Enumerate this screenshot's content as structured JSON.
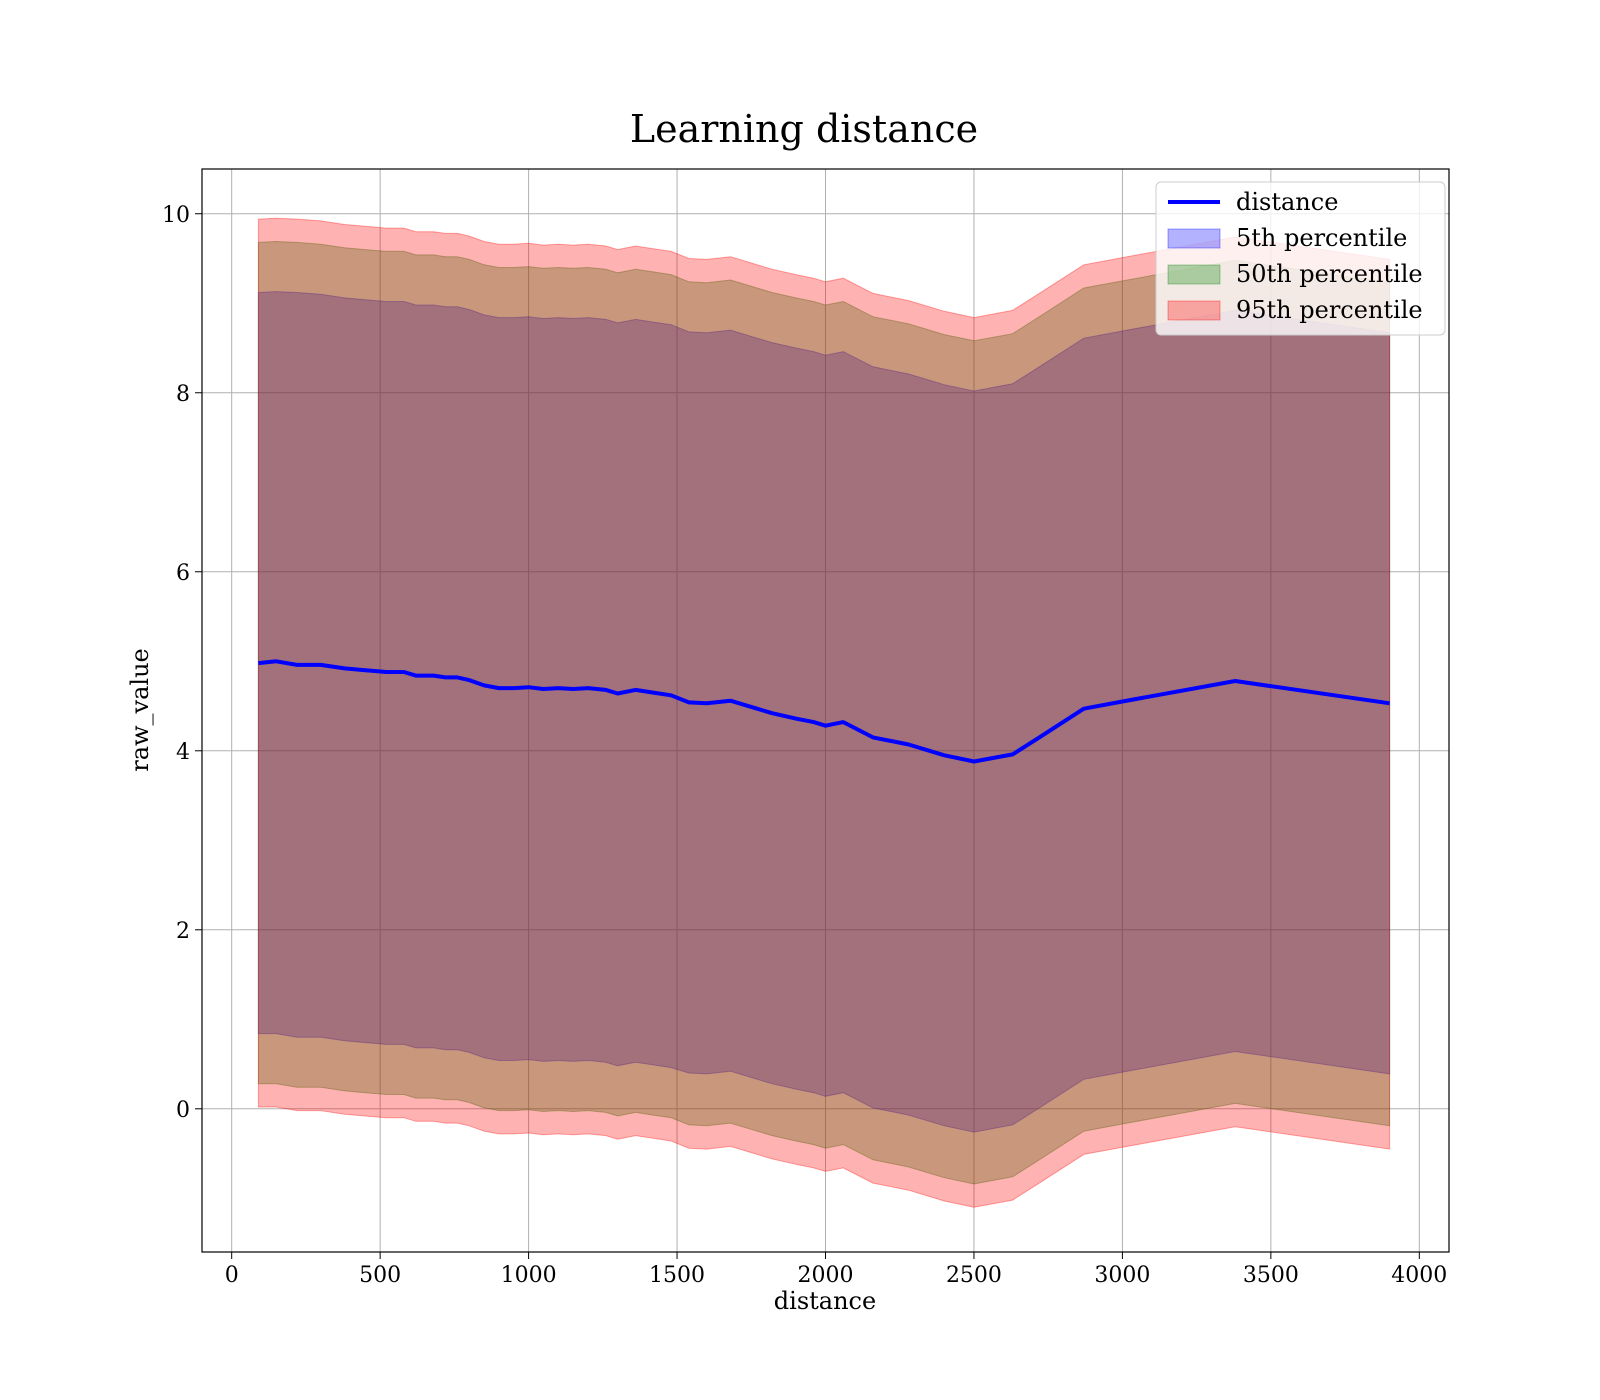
{
  "chart_data": {
    "type": "area",
    "title": "Learning distance",
    "xlabel": "distance",
    "ylabel": "raw_value",
    "xlim": [
      -100,
      4100
    ],
    "ylim": [
      -1.6,
      10.5
    ],
    "xticks": [
      0,
      500,
      1000,
      1500,
      2000,
      2500,
      3000,
      3500,
      4000
    ],
    "yticks": [
      0,
      2,
      4,
      6,
      8,
      10
    ],
    "grid": true,
    "legend_position": "top-right",
    "x": [
      90,
      150,
      220,
      300,
      380,
      450,
      520,
      580,
      620,
      680,
      720,
      760,
      800,
      850,
      900,
      950,
      1000,
      1050,
      1100,
      1150,
      1200,
      1260,
      1300,
      1360,
      1420,
      1480,
      1540,
      1600,
      1680,
      1760,
      1820,
      1900,
      1960,
      2000,
      2060,
      2160,
      2280,
      2400,
      2500,
      2630,
      2720,
      2870,
      3000,
      3380,
      3900
    ],
    "series": [
      {
        "name": "distance",
        "kind": "line",
        "color": "#0000ff",
        "values": [
          4.98,
          5.0,
          4.96,
          4.96,
          4.92,
          4.9,
          4.88,
          4.88,
          4.84,
          4.84,
          4.82,
          4.82,
          4.79,
          4.73,
          4.7,
          4.7,
          4.71,
          4.69,
          4.7,
          4.69,
          4.7,
          4.68,
          4.64,
          4.68,
          4.65,
          4.62,
          4.54,
          4.53,
          4.56,
          4.48,
          4.42,
          4.36,
          4.32,
          4.28,
          4.32,
          4.15,
          4.07,
          3.95,
          3.88,
          3.96,
          4.15,
          4.47,
          4.55,
          4.78,
          4.53
        ]
      },
      {
        "name": "5th percentile",
        "kind": "band",
        "color": "#0000ff",
        "lower": [
          0.84,
          0.84,
          0.8,
          0.8,
          0.76,
          0.74,
          0.72,
          0.72,
          0.68,
          0.68,
          0.66,
          0.66,
          0.63,
          0.57,
          0.54,
          0.54,
          0.55,
          0.53,
          0.54,
          0.53,
          0.54,
          0.52,
          0.48,
          0.52,
          0.49,
          0.46,
          0.4,
          0.39,
          0.42,
          0.34,
          0.28,
          0.22,
          0.18,
          0.14,
          0.18,
          0.01,
          -0.07,
          -0.19,
          -0.26,
          -0.18,
          0.01,
          0.33,
          0.41,
          0.64,
          0.39
        ],
        "upper": [
          9.12,
          9.13,
          9.12,
          9.1,
          9.06,
          9.04,
          9.02,
          9.02,
          8.98,
          8.98,
          8.96,
          8.96,
          8.93,
          8.87,
          8.84,
          8.84,
          8.85,
          8.83,
          8.84,
          8.83,
          8.84,
          8.82,
          8.78,
          8.82,
          8.79,
          8.76,
          8.68,
          8.67,
          8.7,
          8.62,
          8.56,
          8.5,
          8.46,
          8.42,
          8.46,
          8.29,
          8.21,
          8.09,
          8.02,
          8.1,
          8.29,
          8.61,
          8.69,
          8.92,
          8.67
        ]
      },
      {
        "name": "50th percentile",
        "kind": "band",
        "color": "#008000",
        "lower": [
          0.28,
          0.28,
          0.24,
          0.24,
          0.2,
          0.18,
          0.16,
          0.16,
          0.12,
          0.12,
          0.1,
          0.1,
          0.07,
          0.01,
          -0.02,
          -0.02,
          -0.01,
          -0.03,
          -0.02,
          -0.03,
          -0.02,
          -0.04,
          -0.08,
          -0.04,
          -0.07,
          -0.1,
          -0.18,
          -0.19,
          -0.16,
          -0.24,
          -0.3,
          -0.36,
          -0.4,
          -0.44,
          -0.4,
          -0.57,
          -0.65,
          -0.77,
          -0.84,
          -0.76,
          -0.57,
          -0.25,
          -0.17,
          0.06,
          -0.19
        ],
        "upper": [
          9.68,
          9.69,
          9.68,
          9.66,
          9.62,
          9.6,
          9.58,
          9.58,
          9.54,
          9.54,
          9.52,
          9.52,
          9.49,
          9.43,
          9.4,
          9.4,
          9.41,
          9.39,
          9.4,
          9.39,
          9.4,
          9.38,
          9.34,
          9.38,
          9.35,
          9.32,
          9.24,
          9.23,
          9.26,
          9.18,
          9.12,
          9.06,
          9.02,
          8.98,
          9.02,
          8.85,
          8.77,
          8.65,
          8.58,
          8.66,
          8.85,
          9.17,
          9.25,
          9.48,
          9.23
        ]
      },
      {
        "name": "95th percentile",
        "kind": "band",
        "color": "#ff0000",
        "lower": [
          0.02,
          0.02,
          -0.02,
          -0.02,
          -0.06,
          -0.08,
          -0.1,
          -0.1,
          -0.14,
          -0.14,
          -0.16,
          -0.16,
          -0.19,
          -0.25,
          -0.28,
          -0.28,
          -0.27,
          -0.29,
          -0.28,
          -0.29,
          -0.28,
          -0.3,
          -0.34,
          -0.3,
          -0.33,
          -0.36,
          -0.44,
          -0.45,
          -0.42,
          -0.5,
          -0.56,
          -0.62,
          -0.66,
          -0.7,
          -0.66,
          -0.83,
          -0.91,
          -1.03,
          -1.1,
          -1.02,
          -0.83,
          -0.51,
          -0.43,
          -0.2,
          -0.45
        ],
        "upper": [
          9.94,
          9.95,
          9.94,
          9.92,
          9.88,
          9.86,
          9.84,
          9.84,
          9.8,
          9.8,
          9.78,
          9.78,
          9.75,
          9.69,
          9.66,
          9.66,
          9.67,
          9.65,
          9.66,
          9.65,
          9.66,
          9.64,
          9.6,
          9.64,
          9.61,
          9.58,
          9.5,
          9.49,
          9.52,
          9.44,
          9.38,
          9.32,
          9.28,
          9.24,
          9.28,
          9.11,
          9.03,
          8.91,
          8.84,
          8.92,
          9.11,
          9.43,
          9.51,
          9.74,
          9.49
        ]
      }
    ]
  }
}
